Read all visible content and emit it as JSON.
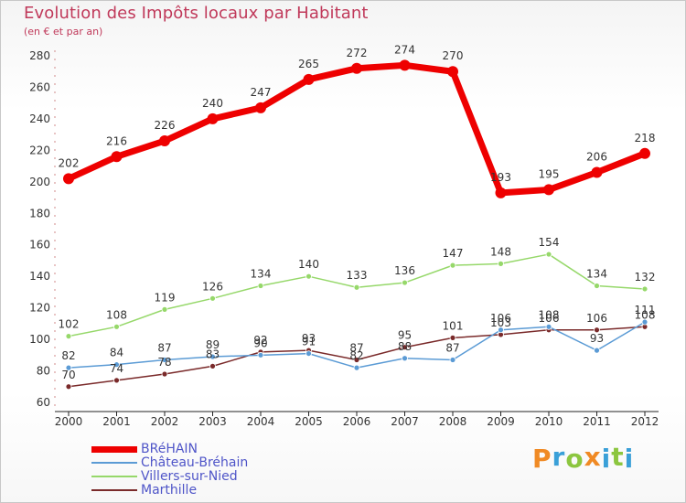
{
  "header": {
    "title": "Evolution des Impôts locaux par Habitant",
    "subtitle": "(en € et par an)"
  },
  "brand": {
    "letters": [
      "P",
      "r",
      "o",
      "x",
      "i",
      "t",
      "i"
    ],
    "colors": [
      "#f08a24",
      "#3aa0d8",
      "#8cc63f",
      "#f08a24",
      "#3aa0d8",
      "#8cc63f",
      "#3aa0d8"
    ]
  },
  "chart_data": {
    "type": "line",
    "title": "Evolution des Impôts locaux par Habitant",
    "subtitle": "(en € et par an)",
    "xlabel": "",
    "ylabel": "",
    "x": [
      "2000",
      "2001",
      "2002",
      "2003",
      "2004",
      "2005",
      "2006",
      "2007",
      "2008",
      "2009",
      "2010",
      "2011",
      "2012"
    ],
    "ylim": [
      60,
      280
    ],
    "yticks": [
      60,
      80,
      100,
      120,
      140,
      160,
      180,
      200,
      220,
      240,
      260,
      280
    ],
    "grid": false,
    "legend_position": "bottom-left",
    "series": [
      {
        "name": "BRéHAIN",
        "color": "#ee0000",
        "values": [
          202,
          216,
          226,
          240,
          247,
          265,
          272,
          274,
          270,
          193,
          195,
          206,
          218
        ],
        "labels": [
          "202",
          "216",
          "226",
          "240",
          "247",
          "265",
          "272",
          "274",
          "270",
          "193",
          "195",
          "206",
          "218"
        ]
      },
      {
        "name": "Château-Bréhain",
        "color": "#5b9bd5",
        "values": [
          82,
          84,
          87,
          89,
          90,
          91,
          82,
          88,
          87,
          106,
          108,
          93,
          111
        ],
        "labels": [
          "82",
          "84",
          "87",
          "89",
          "90",
          "91",
          "82",
          "88",
          "87",
          "106",
          "108",
          "93",
          "111"
        ]
      },
      {
        "name": "Villers-sur-Nied",
        "color": "#96d86a",
        "values": [
          102,
          108,
          119,
          126,
          134,
          140,
          133,
          136,
          147,
          148,
          154,
          134,
          132
        ],
        "labels": [
          "102",
          "108",
          "119",
          "126",
          "134",
          "140",
          "133",
          "136",
          "147",
          "148",
          "154",
          "134",
          "132"
        ]
      },
      {
        "name": "Marthille",
        "color": "#7a2a2a",
        "values": [
          70,
          74,
          78,
          83,
          92,
          93,
          87,
          95,
          101,
          103,
          106,
          106,
          108
        ],
        "labels": [
          "70",
          "74",
          "78",
          "83",
          "92",
          "93",
          "87",
          "95",
          "101",
          "103",
          "106",
          "106",
          "108"
        ]
      }
    ]
  }
}
